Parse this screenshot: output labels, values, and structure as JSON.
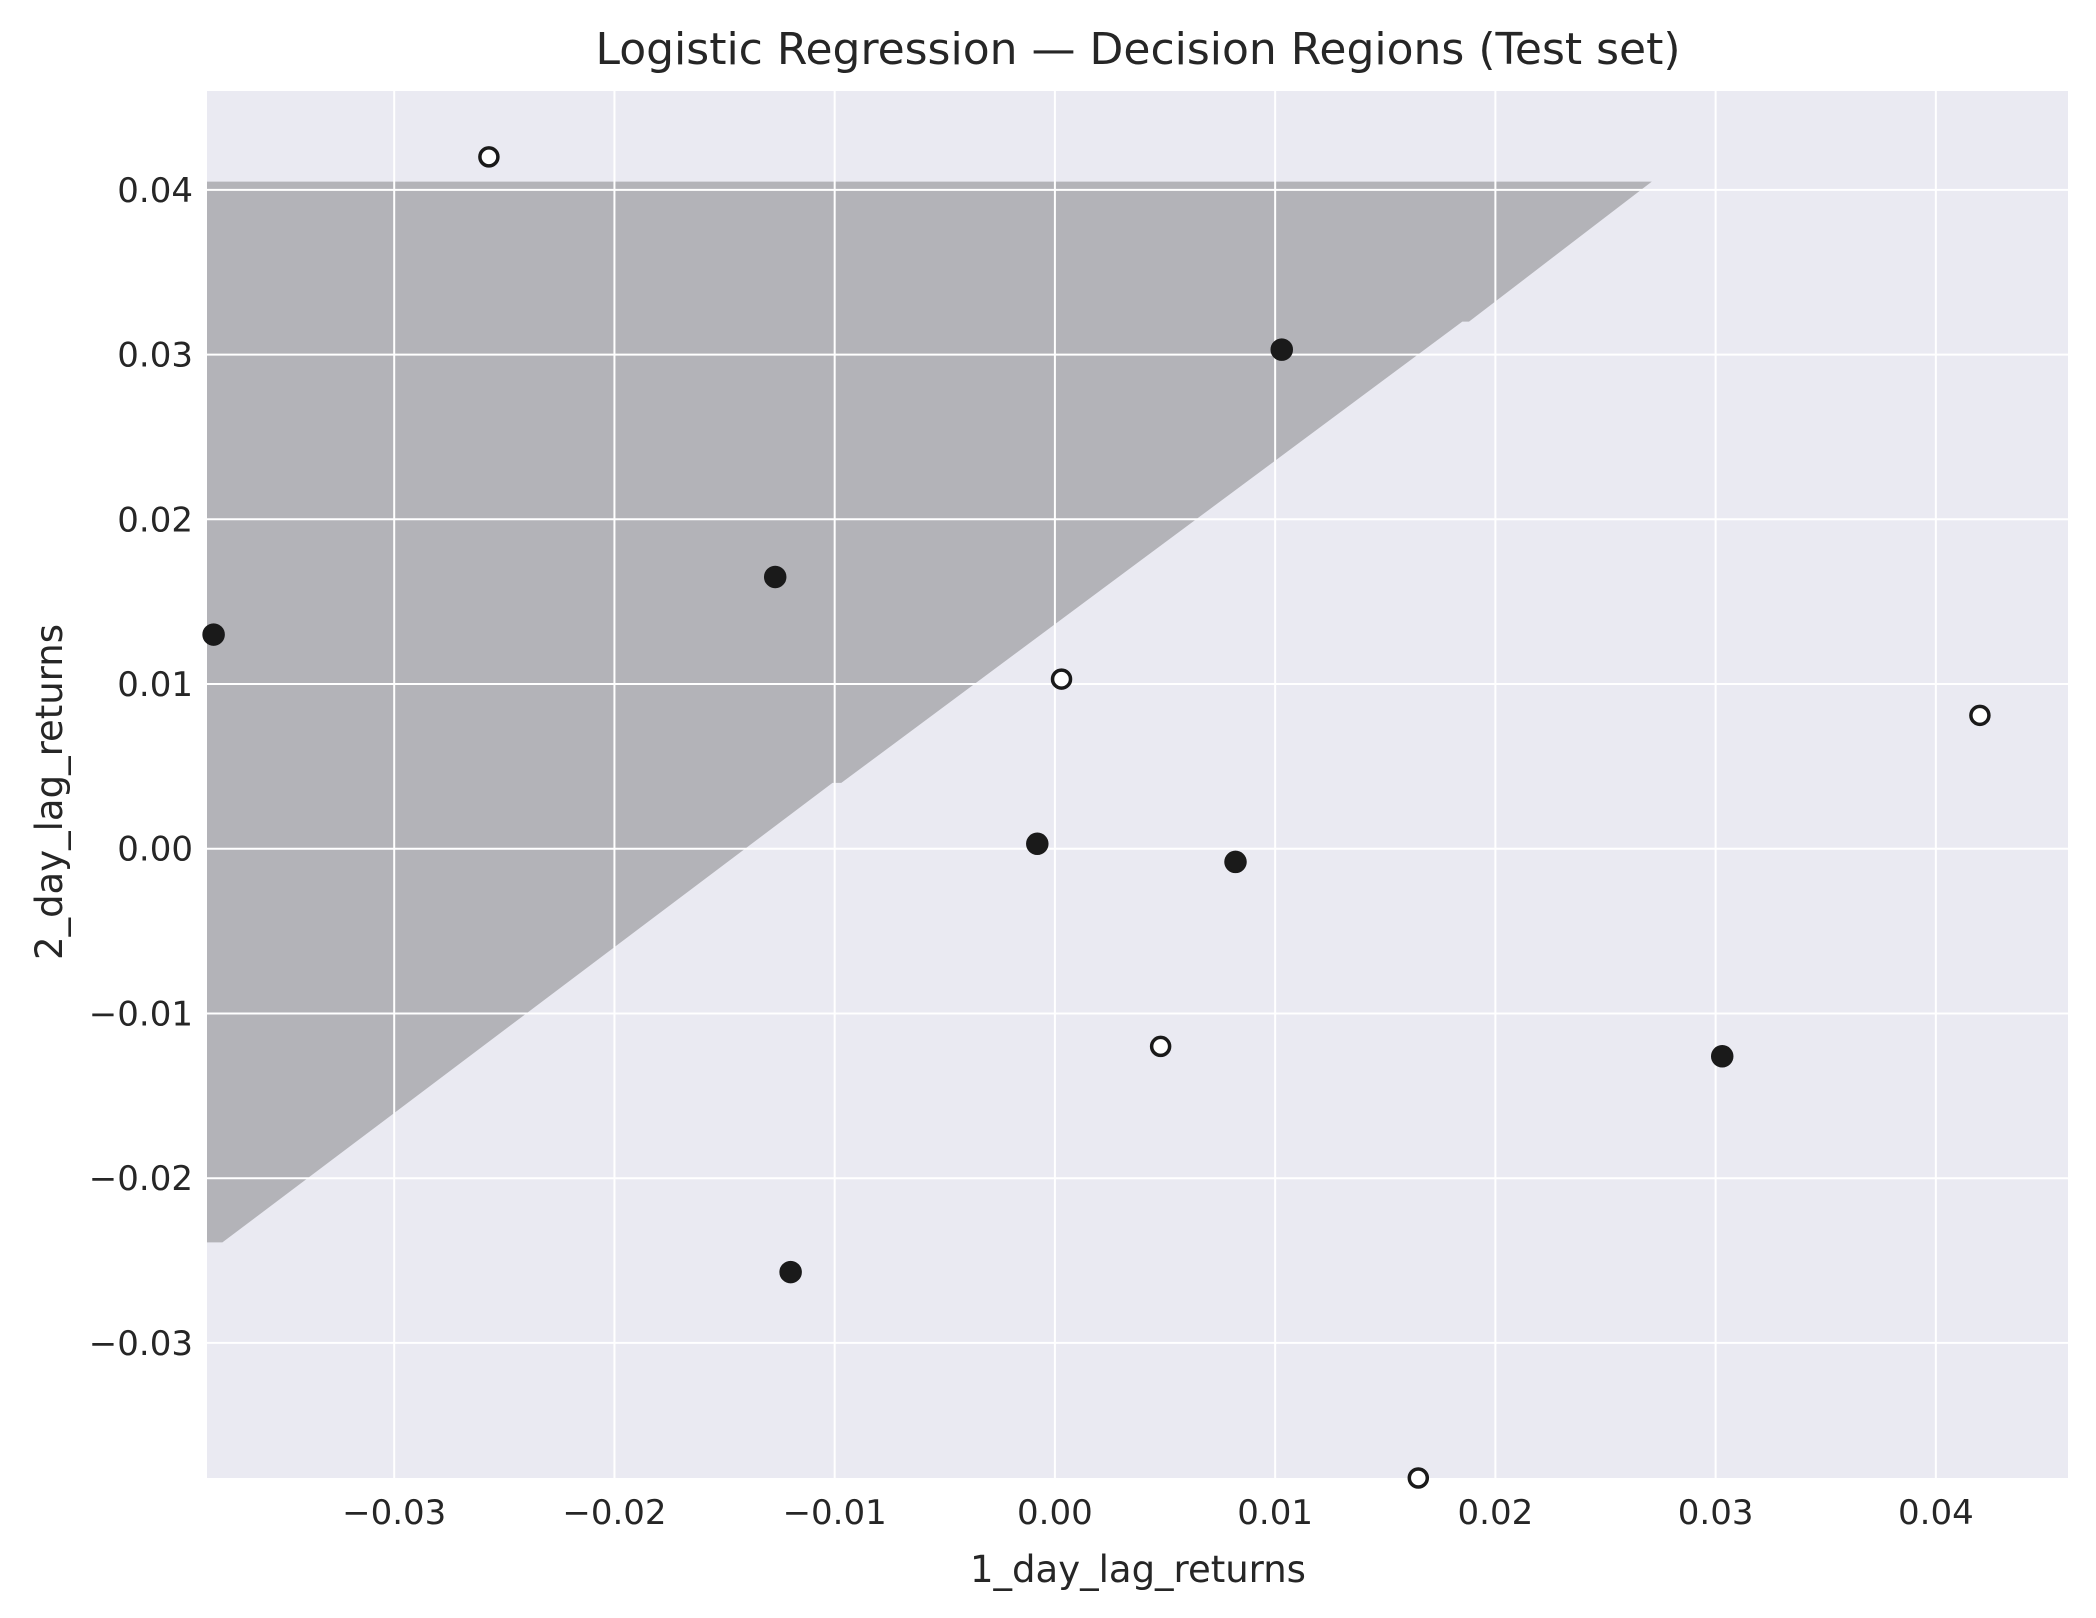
{
  "chart_data": {
    "type": "scatter",
    "title": "Logistic Regression — Decision Regions (Test set)",
    "xlabel": "1_day_lag_returns",
    "ylabel": "2_day_lag_returns",
    "xlim": [
      -0.0385,
      0.046
    ],
    "ylim": [
      -0.0382,
      0.046
    ],
    "xticks": [
      -0.03,
      -0.02,
      -0.01,
      0.0,
      0.01,
      0.02,
      0.03,
      0.04
    ],
    "xtick_labels": [
      "−0.03",
      "−0.02",
      "−0.01",
      "0.00",
      "0.01",
      "0.02",
      "0.03",
      "0.04"
    ],
    "yticks": [
      -0.03,
      -0.02,
      -0.01,
      0.0,
      0.01,
      0.02,
      0.03,
      0.04
    ],
    "ytick_labels": [
      "−0.03",
      "−0.02",
      "−0.01",
      "0.00",
      "0.01",
      "0.02",
      "0.03",
      "0.04"
    ],
    "grid": true,
    "background_color": "#eaeaf2",
    "region_color": "#b3b3b8",
    "region_polygon": [
      [
        -0.0385,
        0.0405
      ],
      [
        0.0271,
        0.0405
      ],
      [
        0.0188,
        0.032
      ],
      [
        0.0185,
        0.032
      ],
      [
        -0.0097,
        0.004
      ],
      [
        -0.0101,
        0.004
      ],
      [
        -0.0378,
        -0.0239
      ],
      [
        -0.0385,
        -0.0239
      ]
    ],
    "series": [
      {
        "marker": "filled",
        "color": "#1a1a1a",
        "points": [
          [
            -0.0382,
            0.013
          ],
          [
            -0.0127,
            0.0165
          ],
          [
            0.0103,
            0.0303
          ],
          [
            -0.0008,
            0.0003
          ],
          [
            0.0082,
            -0.0008
          ],
          [
            0.0303,
            -0.0126
          ],
          [
            -0.012,
            -0.0257
          ]
        ]
      },
      {
        "marker": "hollow",
        "color": "#1a1a1a",
        "points": [
          [
            -0.0257,
            0.042
          ],
          [
            0.0003,
            0.0103
          ],
          [
            0.042,
            0.0081
          ],
          [
            0.0048,
            -0.012
          ],
          [
            0.0165,
            -0.0382
          ]
        ]
      }
    ]
  }
}
